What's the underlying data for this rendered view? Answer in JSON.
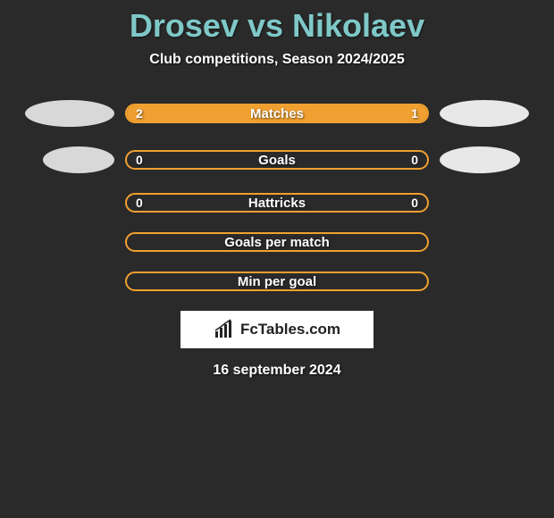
{
  "title": "Drosev vs Nikolaev",
  "subtitle": "Club competitions, Season 2024/2025",
  "colors": {
    "background": "#2a2a2a",
    "title": "#7fc8c8",
    "bar_border": "#f0a030",
    "bar_fill": "#f0a030",
    "text": "#ffffff",
    "oval_left": "#d8d8d8",
    "oval_right": "#e8e8e8",
    "brand_bg": "#ffffff",
    "brand_text": "#222222"
  },
  "bars": [
    {
      "label": "Matches",
      "left_val": "2",
      "right_val": "1",
      "left_pct": 67,
      "right_pct": 33,
      "show_ovals": true
    },
    {
      "label": "Goals",
      "left_val": "0",
      "right_val": "0",
      "left_pct": 0,
      "right_pct": 0,
      "show_ovals": true
    },
    {
      "label": "Hattricks",
      "left_val": "0",
      "right_val": "0",
      "left_pct": 0,
      "right_pct": 0,
      "show_ovals": false
    },
    {
      "label": "Goals per match",
      "left_val": "",
      "right_val": "",
      "left_pct": 0,
      "right_pct": 0,
      "show_ovals": false
    },
    {
      "label": "Min per goal",
      "left_val": "",
      "right_val": "",
      "left_pct": 0,
      "right_pct": 0,
      "show_ovals": false
    }
  ],
  "brand": "FcTables.com",
  "date": "16 september 2024"
}
